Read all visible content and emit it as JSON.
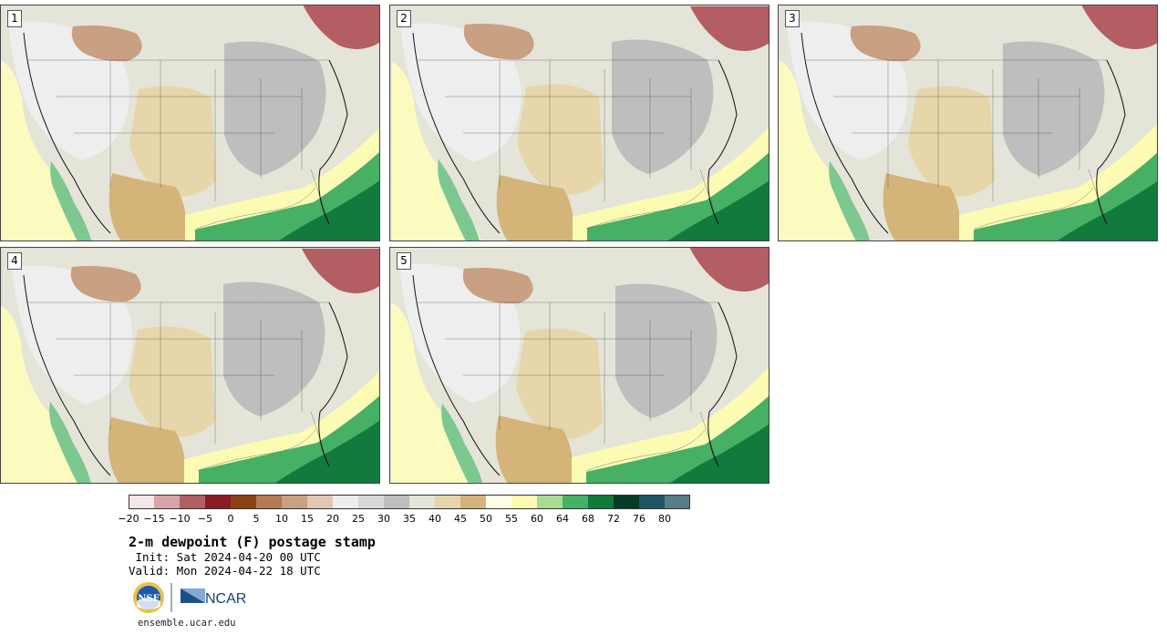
{
  "panels": [
    {
      "label": "1"
    },
    {
      "label": "2"
    },
    {
      "label": "3"
    },
    {
      "label": "4"
    },
    {
      "label": "5"
    }
  ],
  "colorbar": {
    "colors": [
      "#f3e6e6",
      "#d9a4a8",
      "#b35e63",
      "#8c1c24",
      "#8b4314",
      "#b37a54",
      "#c9a082",
      "#e2c8b4",
      "#eeeeee",
      "#d8d8d8",
      "#bebebe",
      "#e4e4d8",
      "#e6d6aa",
      "#d4b478",
      "#fefee8",
      "#fbfbb4",
      "#a8dc94",
      "#46b064",
      "#127a3c",
      "#053c26",
      "#1d5564",
      "#567e84"
    ],
    "tick_labels": [
      "−20",
      "−15",
      "−10",
      "−5",
      "0",
      "5",
      "10",
      "15",
      "20",
      "25",
      "30",
      "35",
      "40",
      "45",
      "50",
      "55",
      "60",
      "64",
      "68",
      "72",
      "76",
      "80"
    ]
  },
  "title": "2-m dewpoint (F) postage stamp",
  "init": " Init: Sat 2024-04-20 00 UTC",
  "valid": "Valid: Mon 2024-04-22 18 UTC",
  "logos": {
    "nsf": "NSF",
    "ncar": "NCAR"
  },
  "url": "ensemble.ucar.edu"
}
